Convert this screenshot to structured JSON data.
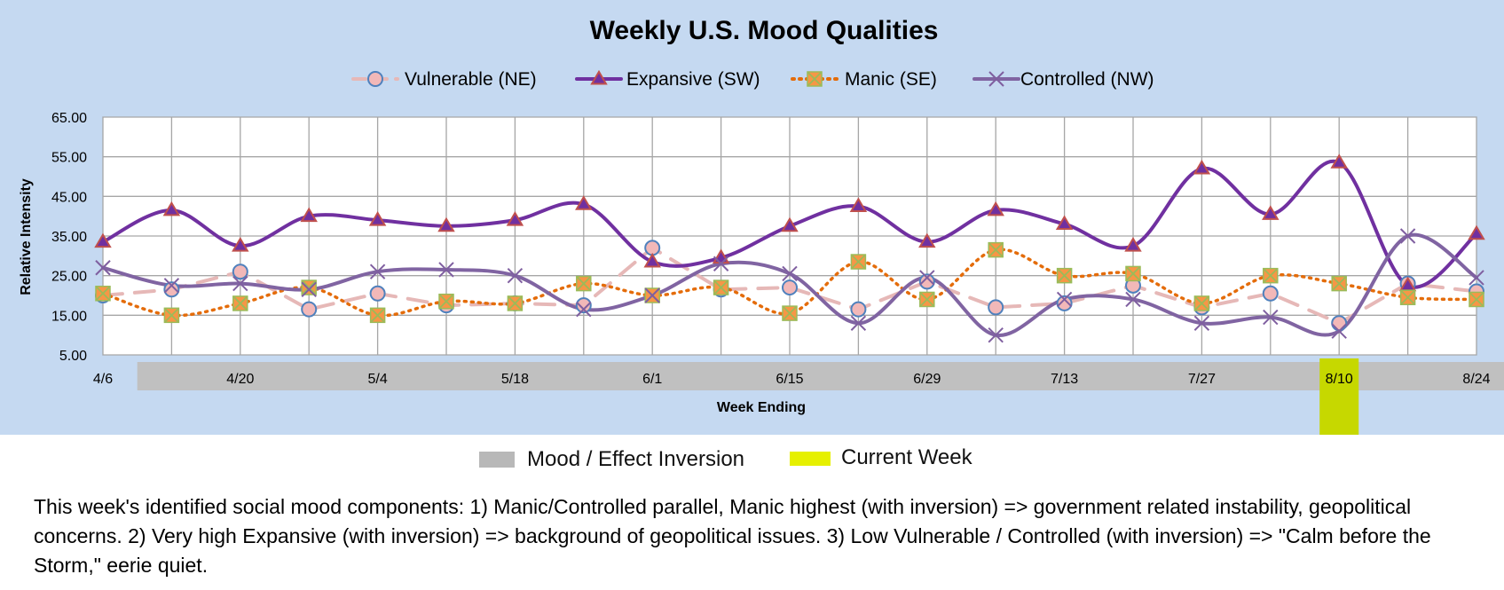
{
  "colors": {
    "chart_background": "#c5d9f1",
    "plot_background": "#ffffff",
    "gridline": "#a6a6a6",
    "inversion_band": "#c0c0c0",
    "current_week": "#c6d800"
  },
  "chart_data": {
    "type": "line",
    "title": "Weekly U.S. Mood Qualities",
    "xlabel": "Week Ending",
    "ylabel": "Relative Intensity",
    "ylim": [
      5,
      65
    ],
    "yticks": [
      "5.00",
      "15.00",
      "25.00",
      "35.00",
      "45.00",
      "55.00",
      "65.00"
    ],
    "grid": true,
    "legend_position": "top",
    "x": [
      "4/6",
      "4/13",
      "4/20",
      "4/27",
      "5/4",
      "5/11",
      "5/18",
      "5/25",
      "6/1",
      "6/8",
      "6/15",
      "6/22",
      "6/29",
      "7/6",
      "7/13",
      "7/20",
      "7/27",
      "8/3",
      "8/10",
      "8/17",
      "8/24"
    ],
    "x_tick_labels": [
      "4/6",
      "",
      "4/20",
      "",
      "5/4",
      "",
      "5/18",
      "",
      "6/1",
      "",
      "6/15",
      "",
      "6/29",
      "",
      "7/13",
      "",
      "7/27",
      "",
      "8/10",
      "",
      "8/24"
    ],
    "series": [
      {
        "name": "Vulnerable (NE)",
        "color": "#e6b8b7",
        "marker": "circle",
        "marker_fill": "#f2b8b8",
        "marker_stroke": "#4f81bd",
        "line_style": "long-dash",
        "smooth": false,
        "values": [
          20,
          21.5,
          26,
          16.5,
          20.5,
          17.5,
          18,
          17.5,
          32,
          21.5,
          22,
          16.5,
          23.5,
          17,
          18,
          22.5,
          17,
          20.5,
          13,
          23,
          21
        ]
      },
      {
        "name": "Expansive (SW)",
        "color": "#7030a0",
        "marker": "triangle",
        "marker_fill": "#7030a0",
        "marker_stroke": "#c0504d",
        "line_style": "solid",
        "smooth": true,
        "values": [
          33.5,
          41.5,
          32.5,
          40,
          39,
          37.5,
          39,
          43,
          28.5,
          29.5,
          37.5,
          42.5,
          33.5,
          41.5,
          38,
          32.5,
          52,
          40.5,
          53.5,
          22.5,
          35.5
        ]
      },
      {
        "name": "Manic (SE)",
        "color": "#e46c0a",
        "marker": "square-x",
        "marker_fill": "#f79646",
        "marker_stroke": "#9bbb59",
        "line_style": "dotted",
        "smooth": true,
        "values": [
          20.5,
          15,
          18,
          22,
          15,
          18.5,
          18,
          23,
          20,
          22,
          15.5,
          28.5,
          19,
          31.5,
          25,
          25.5,
          18,
          25,
          23,
          19.5,
          19
        ]
      },
      {
        "name": "Controlled (NW)",
        "color": "#8064a2",
        "marker": "x",
        "marker_fill": "none",
        "marker_stroke": "#7f5fa0",
        "line_style": "solid",
        "smooth": true,
        "values": [
          27,
          22.5,
          23,
          21.5,
          26,
          26.5,
          25,
          16.5,
          20,
          28,
          25.5,
          13,
          24.5,
          10,
          19,
          19,
          13,
          14.5,
          11,
          35,
          24.5
        ]
      }
    ],
    "annotations": {
      "inversion_weeks": [
        "4/13",
        "4/20",
        "4/27",
        "5/4",
        "5/11",
        "5/18",
        "5/25",
        "6/1",
        "6/8",
        "6/15",
        "6/22",
        "6/29",
        "7/6",
        "7/13",
        "7/20",
        "7/27",
        "8/3",
        "8/10",
        "8/17",
        "8/24"
      ],
      "current_week": "8/10"
    }
  },
  "key": {
    "inversion_label": "Mood / Effect Inversion",
    "current_label": "Current Week"
  },
  "note": "This week's identified social mood components:  1) Manic/Controlled parallel, Manic highest (with inversion) => government related instability, geopolitical concerns.  2) Very high Expansive (with inversion) => background of geopolitical issues.   3) Low Vulnerable / Controlled (with inversion) => \"Calm before the Storm,\" eerie quiet."
}
